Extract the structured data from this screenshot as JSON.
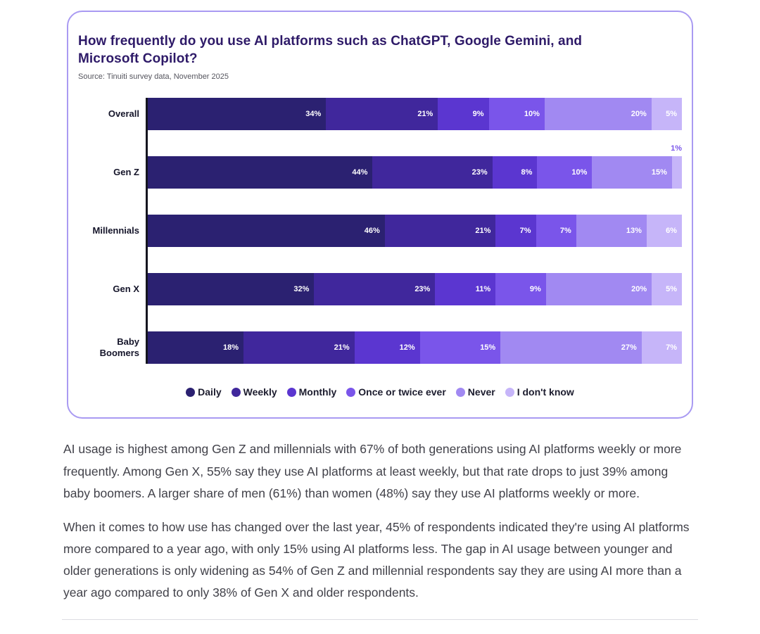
{
  "card": {
    "title": "How frequently do you use AI platforms such as ChatGPT, Google Gemini, and Microsoft Copilot?",
    "source": "Source: Tinuiti survey data, November 2025"
  },
  "chart_data": {
    "type": "bar",
    "orientation": "horizontal",
    "stacked": true,
    "unit": "%",
    "title": "How frequently do you use AI platforms such as ChatGPT, Google Gemini, and Microsoft Copilot?",
    "categories": [
      "Overall",
      "Gen Z",
      "Millennials",
      "Gen X",
      "Baby Boomers"
    ],
    "series": [
      {
        "name": "Daily",
        "color": "#2b2171",
        "values": [
          34,
          44,
          46,
          32,
          18
        ]
      },
      {
        "name": "Weekly",
        "color": "#40279c",
        "values": [
          21,
          23,
          21,
          23,
          21
        ]
      },
      {
        "name": "Monthly",
        "color": "#5b36d0",
        "values": [
          9,
          8,
          7,
          11,
          12
        ]
      },
      {
        "name": "Once or twice ever",
        "color": "#7a55ea",
        "values": [
          10,
          10,
          7,
          9,
          15
        ]
      },
      {
        "name": "Never",
        "color": "#a189f2",
        "values": [
          20,
          15,
          13,
          20,
          27
        ]
      },
      {
        "name": "I don't know",
        "color": "#c6b5f9",
        "values": [
          5,
          1,
          6,
          5,
          7
        ]
      }
    ],
    "legend_position": "bottom",
    "label_threshold_inside": 3,
    "xlim": [
      0,
      100
    ],
    "grid": false
  },
  "paragraphs": [
    "AI usage is highest among Gen Z and millennials with 67% of both generations using AI platforms weekly or more frequently. Among Gen X, 55% say they use AI platforms at least weekly, but that rate drops to just 39% among baby boomers. A larger share of men (61%) than women (48%) say they use AI platforms weekly or more.",
    "When it comes to how use has changed over the last year, 45% of respondents indicated they're using AI platforms more compared to a year ago, with only 15% using AI platforms less. The gap in AI usage between younger and older generations is only widening as 54% of Gen Z and millennial respondents say they are using AI more than a year ago compared to only 38% of Gen X and older respondents."
  ]
}
